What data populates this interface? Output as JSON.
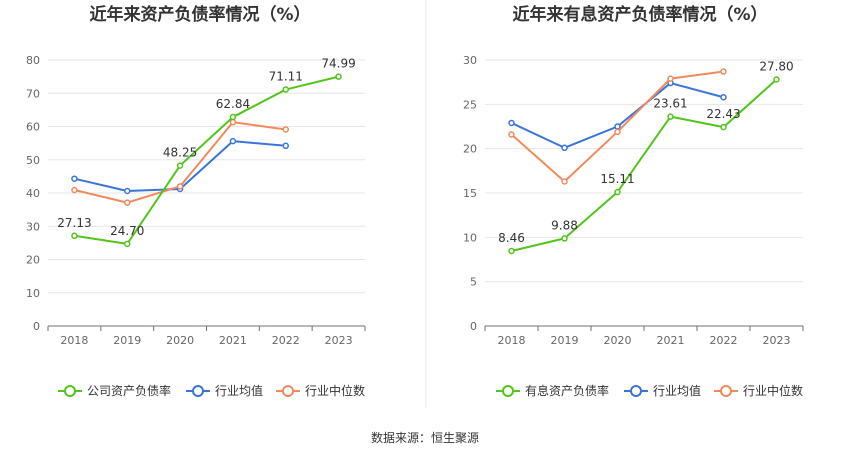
{
  "source_note": "数据来源：恒生聚源",
  "chart_data": [
    {
      "type": "line",
      "title": "近年来资产负债率情况（%）",
      "categories": [
        "2018",
        "2019",
        "2020",
        "2021",
        "2022",
        "2023"
      ],
      "ylim": [
        0,
        80
      ],
      "yticks": [
        0,
        10,
        20,
        30,
        40,
        50,
        60,
        70,
        80
      ],
      "grid": true,
      "legend_position": "bottom",
      "series": [
        {
          "name": "公司资产负债率",
          "color": "#52c41a",
          "values": [
            27.13,
            24.7,
            48.25,
            62.84,
            71.11,
            74.99
          ],
          "labels": [
            "27.13",
            "24.70",
            "48.25",
            "62.84",
            "71.11",
            "74.99"
          ]
        },
        {
          "name": "行业均值",
          "color": "#3b74d8",
          "values": [
            44.3,
            40.6,
            41.2,
            55.6,
            54.2,
            null
          ],
          "labels": null
        },
        {
          "name": "行业中位数",
          "color": "#f08a5d",
          "values": [
            40.9,
            37.1,
            42.0,
            61.3,
            59.1,
            null
          ],
          "labels": null
        }
      ]
    },
    {
      "type": "line",
      "title": "近年来有息资产负债率情况（%）",
      "categories": [
        "2018",
        "2019",
        "2020",
        "2021",
        "2022",
        "2023"
      ],
      "ylim": [
        0,
        30
      ],
      "yticks": [
        0,
        5,
        10,
        15,
        20,
        25,
        30
      ],
      "grid": true,
      "legend_position": "bottom",
      "series": [
        {
          "name": "有息资产负债率",
          "color": "#52c41a",
          "values": [
            8.46,
            9.88,
            15.11,
            23.61,
            22.43,
            27.8
          ],
          "labels": [
            "8.46",
            "9.88",
            "15.11",
            "23.61",
            "22.43",
            "27.80"
          ]
        },
        {
          "name": "行业均值",
          "color": "#3b74d8",
          "values": [
            22.9,
            20.1,
            22.5,
            27.4,
            25.8,
            null
          ],
          "labels": null
        },
        {
          "name": "行业中位数",
          "color": "#f08a5d",
          "values": [
            21.6,
            16.3,
            21.9,
            27.9,
            28.7,
            null
          ],
          "labels": null
        }
      ]
    }
  ]
}
